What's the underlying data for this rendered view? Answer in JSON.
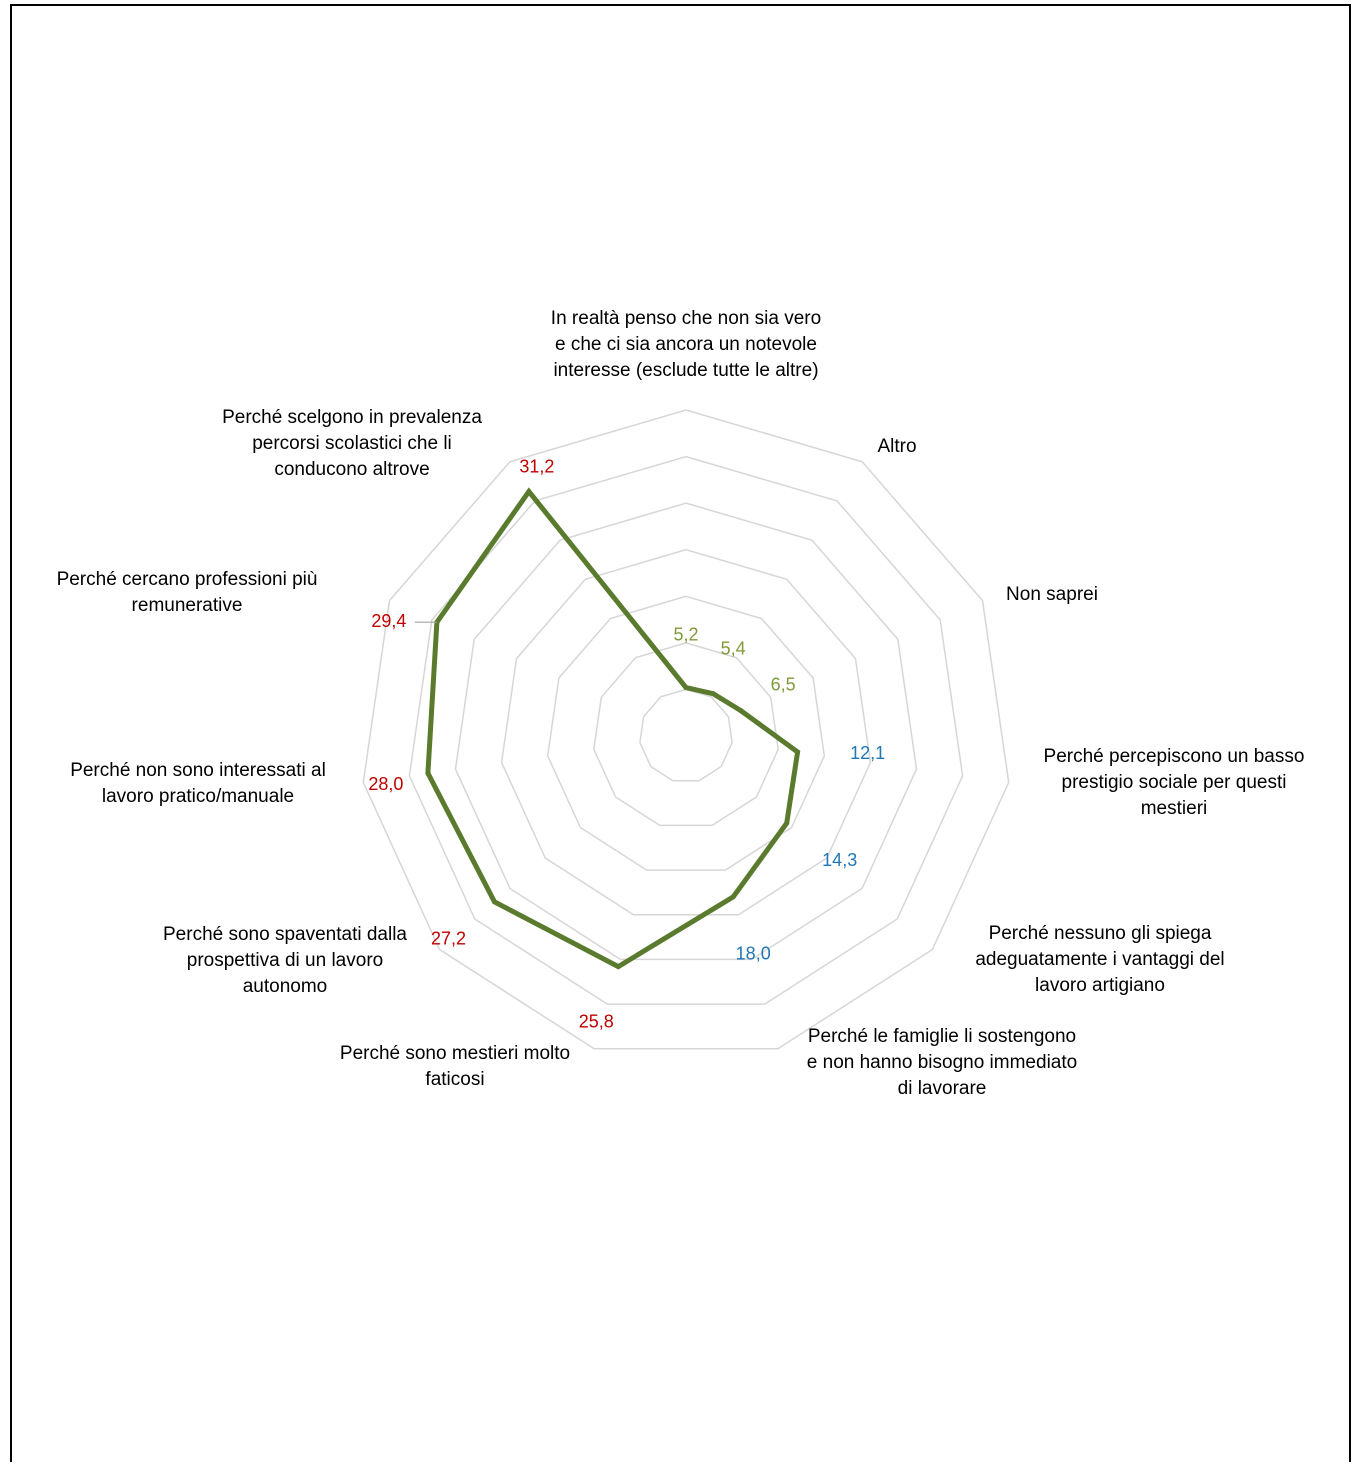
{
  "chart_data": {
    "type": "radar",
    "title": "",
    "categories": [
      "In realtà penso che non sia vero e che ci sia ancora un notevole interesse (esclude tutte le altre)",
      "Altro",
      "Non saprei",
      "Perché percepiscono un basso prestigio sociale per questi mestieri",
      "Perché nessuno gli spiega adeguatamente i vantaggi del lavoro artigiano",
      "Perché le famiglie li sostengono e non hanno bisogno immediato di lavorare",
      "Perché sono mestieri molto faticosi",
      "Perché sono spaventati dalla prospettiva di un lavoro autonomo",
      "Perché non sono interessati al lavoro pratico/manuale",
      "Perché cercano professioni più remunerative",
      "Perché scelgono in prevalenza percorsi scolastici che li conducono altrove"
    ],
    "category_lines": [
      [
        "In realtà penso che non sia vero",
        "e che ci sia ancora un notevole",
        "interesse (esclude tutte le altre)"
      ],
      [
        "Altro"
      ],
      [
        "Non saprei"
      ],
      [
        "Perché percepiscono un basso",
        "prestigio sociale per questi",
        "mestieri"
      ],
      [
        "Perché nessuno gli spiega",
        "adeguatamente i vantaggi del",
        "lavoro artigiano"
      ],
      [
        "Perché le famiglie li sostengono",
        "e non hanno bisogno immediato",
        "di lavorare"
      ],
      [
        "Perché sono mestieri molto",
        "faticosi"
      ],
      [
        "Perché sono spaventati dalla",
        "prospettiva di un lavoro",
        "autonomo"
      ],
      [
        "Perché non sono interessati al",
        "lavoro pratico/manuale"
      ],
      [
        "Perché cercano professioni più",
        "remunerative"
      ],
      [
        "Perché scelgono in prevalenza",
        "percorsi scolastici che li",
        "conducono altrove"
      ]
    ],
    "series": [
      {
        "values": [
          5.2,
          5.4,
          6.5,
          12.1,
          14.3,
          18.0,
          25.8,
          27.2,
          28.0,
          29.4,
          31.2
        ]
      }
    ],
    "value_labels": [
      "5,2",
      "5,4",
      "6,5",
      "12,1",
      "14,3",
      "18,0",
      "25,8",
      "27,2",
      "28,0",
      "29,4",
      "31,2"
    ],
    "label_color_groups": [
      "low",
      "low",
      "low",
      "mid",
      "mid",
      "mid",
      "high",
      "high",
      "high",
      "high",
      "high"
    ],
    "rlim": [
      0,
      35
    ],
    "ring_step": 5,
    "grid": true,
    "legend": "none",
    "colors": {
      "series_line": "#5a7a2e",
      "grid": "#d6d6d6",
      "label_low": "#7f9a3a",
      "label_mid": "#1f77b4",
      "label_high": "#c00000",
      "category_text": "#000000"
    }
  }
}
